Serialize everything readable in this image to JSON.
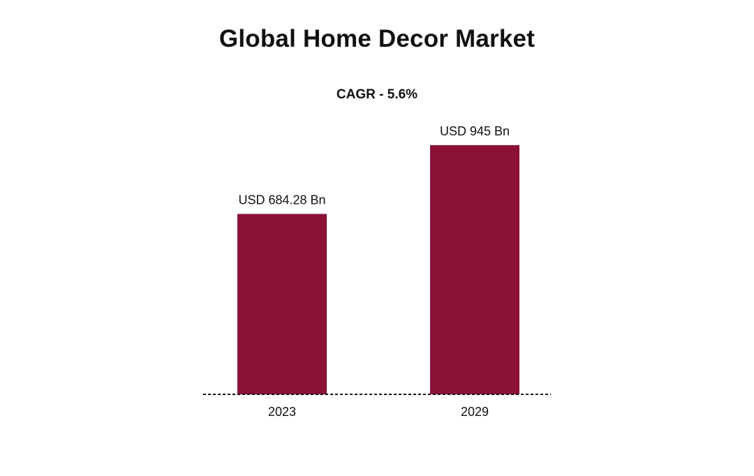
{
  "chart_data": {
    "type": "bar",
    "title": "Global Home Decor Market",
    "subtitle": "CAGR - 5.6%",
    "categories": [
      "2023",
      "2029"
    ],
    "values": [
      684.28,
      945
    ],
    "data_labels": [
      "USD 684.28 Bn",
      "USD 945 Bn"
    ],
    "xlabel": "",
    "ylabel": "",
    "ylim": [
      0,
      945
    ],
    "grid": false,
    "legend": "none",
    "baseline_style": "dotted",
    "colors": {
      "bar": "#8B1235",
      "text": "#111111",
      "baseline": "#111111"
    }
  }
}
